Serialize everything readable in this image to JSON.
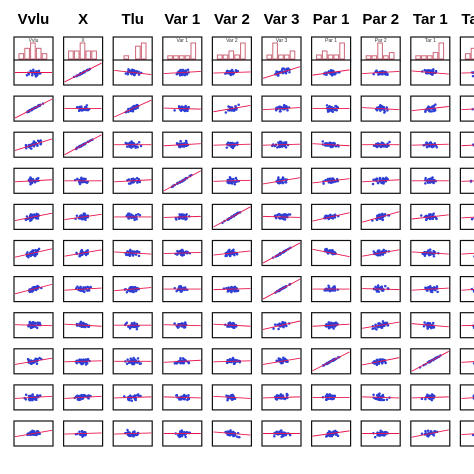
{
  "chart_data": {
    "type": "scatter",
    "title": "",
    "variables": [
      "Vvlu",
      "X",
      "Tlu",
      "Var 1",
      "Var 2",
      "Var 3",
      "Par 1",
      "Par 2",
      "Tar 1",
      "Ta"
    ],
    "row_count": 11,
    "diagonal": "histogram",
    "off_diagonal": "scatter with fitted line",
    "histogram_top_labels": [
      "Vvlu",
      "X",
      "",
      "Var 1",
      "Var 2",
      "Var 3",
      "Par 1",
      "Par 2",
      "Tar 1",
      ""
    ],
    "histograms": [
      [
        1,
        2,
        3,
        2,
        1
      ],
      [
        1,
        1,
        2,
        1,
        1
      ],
      [
        0,
        1,
        0,
        4,
        5
      ],
      [
        1,
        1,
        1,
        1,
        5
      ],
      [
        1,
        1,
        2,
        1,
        4
      ],
      [
        1,
        4,
        1,
        1,
        2
      ],
      [
        1,
        2,
        1,
        1,
        4
      ],
      [
        1,
        1,
        5,
        1,
        2
      ],
      [
        1,
        1,
        1,
        2,
        5
      ],
      [
        1,
        2,
        2,
        3,
        1
      ]
    ],
    "trend_slopes": [
      [
        0,
        0.9,
        -0.2,
        0.1,
        0.05,
        0.55,
        0.25,
        0.1,
        -0.15,
        0.05
      ],
      [
        0.9,
        0,
        0.8,
        -0.05,
        0.3,
        0.1,
        0.0,
        -0.1,
        0.2,
        0.1
      ],
      [
        0.55,
        0.95,
        0,
        0.1,
        0.05,
        0.05,
        -0.1,
        0.0,
        0.05,
        0.1
      ],
      [
        0.1,
        0.0,
        0.1,
        1.0,
        0.05,
        0.3,
        0.2,
        0.1,
        0.0,
        0.05
      ],
      [
        0.35,
        0.25,
        0.0,
        0.05,
        1.0,
        -0.05,
        0.4,
        0.5,
        0.2,
        0.1
      ],
      [
        0.4,
        0.3,
        -0.1,
        0.05,
        0.2,
        1.0,
        -0.35,
        0.3,
        -0.1,
        0.1
      ],
      [
        0.45,
        0.1,
        0.15,
        0.0,
        0.05,
        0.95,
        0.0,
        -0.05,
        0.1,
        0.1
      ],
      [
        -0.05,
        -0.1,
        0.0,
        -0.05,
        -0.1,
        0.4,
        0.1,
        0.3,
        -0.15,
        0.05
      ],
      [
        0.3,
        0.05,
        0.0,
        0.1,
        0.05,
        0.3,
        0.9,
        0.35,
        0.95,
        0.1
      ],
      [
        0.1,
        0.1,
        0.05,
        -0.05,
        -0.1,
        0.05,
        0.0,
        -0.05,
        0.05,
        0.1
      ],
      [
        0.3,
        0.05,
        0.05,
        0.0,
        -0.15,
        0.0,
        0.25,
        0.0,
        0.35,
        0.1
      ]
    ],
    "colors": {
      "points": "#2b3fd6",
      "trend": "#e8174f",
      "histogram_bar": "#cc6677",
      "frame": "#111111"
    },
    "points_per_panel": 34
  }
}
